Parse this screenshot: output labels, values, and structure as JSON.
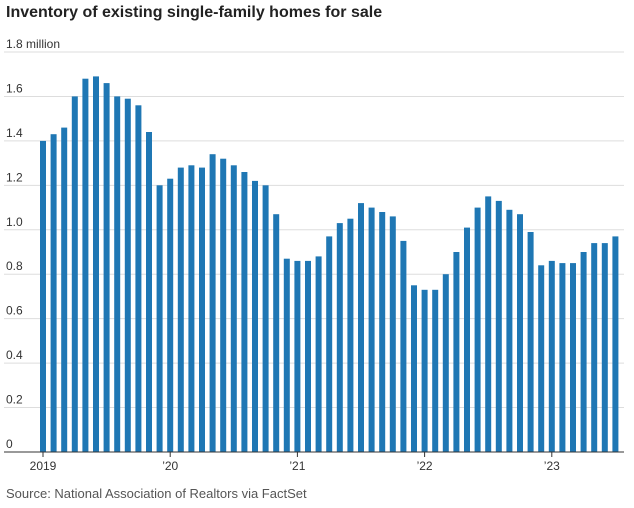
{
  "title": "Inventory of existing single-family homes for sale",
  "source": "Source: National Association of Realtors via FactSet",
  "chart_data": {
    "type": "bar",
    "title": "Inventory of existing single-family homes for sale",
    "xlabel": "",
    "ylabel": "",
    "ylim": [
      0,
      1.8
    ],
    "grid": true,
    "y_ticks": [
      {
        "value": 0,
        "label": "0"
      },
      {
        "value": 0.2,
        "label": "0.2"
      },
      {
        "value": 0.4,
        "label": "0.4"
      },
      {
        "value": 0.6,
        "label": "0.6"
      },
      {
        "value": 0.8,
        "label": "0.8"
      },
      {
        "value": 1.0,
        "label": "1.0"
      },
      {
        "value": 1.2,
        "label": "1.2"
      },
      {
        "value": 1.4,
        "label": "1.4"
      },
      {
        "value": 1.6,
        "label": "1.6"
      },
      {
        "value": 1.8,
        "label": "1.8 million"
      }
    ],
    "x_ticks": [
      {
        "index": 0,
        "label": "2019"
      },
      {
        "index": 12,
        "label": "’20"
      },
      {
        "index": 24,
        "label": "’21"
      },
      {
        "index": 36,
        "label": "’22"
      },
      {
        "index": 48,
        "label": "’23"
      }
    ],
    "bar_color": "#1f77b4",
    "categories": [
      "Jan 2019",
      "Feb 2019",
      "Mar 2019",
      "Apr 2019",
      "May 2019",
      "Jun 2019",
      "Jul 2019",
      "Aug 2019",
      "Sep 2019",
      "Oct 2019",
      "Nov 2019",
      "Dec 2019",
      "Jan 2020",
      "Feb 2020",
      "Mar 2020",
      "Apr 2020",
      "May 2020",
      "Jun 2020",
      "Jul 2020",
      "Aug 2020",
      "Sep 2020",
      "Oct 2020",
      "Nov 2020",
      "Dec 2020",
      "Jan 2021",
      "Feb 2021",
      "Mar 2021",
      "Apr 2021",
      "May 2021",
      "Jun 2021",
      "Jul 2021",
      "Aug 2021",
      "Sep 2021",
      "Oct 2021",
      "Nov 2021",
      "Dec 2021",
      "Jan 2022",
      "Feb 2022",
      "Mar 2022",
      "Apr 2022",
      "May 2022",
      "Jun 2022",
      "Jul 2022",
      "Aug 2022",
      "Sep 2022",
      "Oct 2022",
      "Nov 2022",
      "Dec 2022",
      "Jan 2023",
      "Feb 2023",
      "Mar 2023",
      "Apr 2023",
      "May 2023",
      "Jun 2023",
      "Jul 2023"
    ],
    "values": [
      1.4,
      1.43,
      1.46,
      1.6,
      1.68,
      1.69,
      1.66,
      1.6,
      1.59,
      1.56,
      1.44,
      1.2,
      1.23,
      1.28,
      1.29,
      1.28,
      1.34,
      1.32,
      1.29,
      1.26,
      1.22,
      1.2,
      1.07,
      0.87,
      0.86,
      0.86,
      0.88,
      0.97,
      1.03,
      1.05,
      1.12,
      1.1,
      1.08,
      1.06,
      0.95,
      0.75,
      0.73,
      0.73,
      0.8,
      0.9,
      1.01,
      1.1,
      1.15,
      1.13,
      1.09,
      1.07,
      0.99,
      0.84,
      0.86,
      0.85,
      0.85,
      0.9,
      0.94,
      0.94,
      0.97
    ]
  }
}
